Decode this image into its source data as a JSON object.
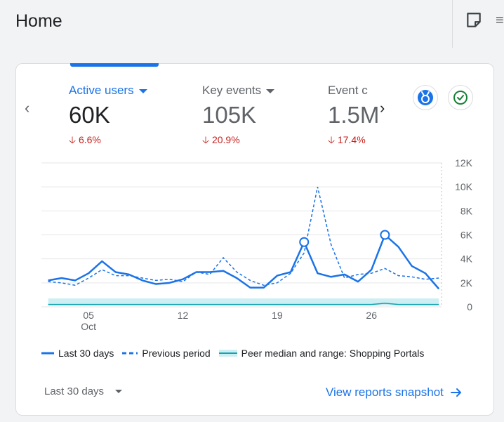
{
  "page": {
    "title": "Home"
  },
  "metrics": [
    {
      "label": "Active users",
      "value": "60K",
      "delta": "6.6%"
    },
    {
      "label": "Key events",
      "value": "105K",
      "delta": "20.9%"
    },
    {
      "label": "Event c",
      "value": "1.5M",
      "delta": "17.4%"
    }
  ],
  "icons": {
    "notes": "sticky-note-icon",
    "prev": "chevron-left-icon",
    "next": "chevron-right-icon",
    "insights": "insights-badge-icon",
    "status": "check-circle-icon",
    "arrow": "arrow-right-icon",
    "down": "arrow-down-icon"
  },
  "colors": {
    "accent": "#1a73e8",
    "negative": "#c5221f",
    "peer_band": "#cdeff3",
    "peer_line": "#12a4af",
    "check": "#188038"
  },
  "legend": {
    "current": "Last 30 days",
    "previous": "Previous period",
    "peer": "Peer median and range: Shopping Portals"
  },
  "footer": {
    "range_label": "Last 30 days",
    "link_label": "View reports snapshot"
  },
  "chart_data": {
    "type": "line",
    "x": [
      2,
      3,
      4,
      5,
      6,
      7,
      8,
      9,
      10,
      11,
      12,
      13,
      14,
      15,
      16,
      17,
      18,
      19,
      20,
      21,
      22,
      23,
      24,
      25,
      26,
      27,
      28,
      29,
      30,
      31
    ],
    "x_ticks": [
      {
        "value": 5,
        "label": "05",
        "sublabel": "Oct"
      },
      {
        "value": 12,
        "label": "12",
        "sublabel": ""
      },
      {
        "value": 19,
        "label": "19",
        "sublabel": ""
      },
      {
        "value": 26,
        "label": "26",
        "sublabel": ""
      }
    ],
    "y_ticks": [
      "0",
      "2K",
      "4K",
      "6K",
      "8K",
      "10K",
      "12K"
    ],
    "ylim": [
      0,
      12000
    ],
    "grid": true,
    "series": [
      {
        "name": "Last 30 days",
        "style": "solid",
        "values": [
          2200,
          2400,
          2200,
          2800,
          3800,
          2900,
          2700,
          2200,
          1900,
          2000,
          2300,
          2900,
          2900,
          3000,
          2400,
          1600,
          1600,
          2600,
          2900,
          5400,
          2800,
          2500,
          2700,
          2100,
          3100,
          6000,
          5000,
          3400,
          2800,
          1500
        ],
        "markers": [
          19,
          25
        ]
      },
      {
        "name": "Previous period",
        "style": "dashed",
        "values": [
          2100,
          2000,
          1800,
          2400,
          3100,
          2600,
          2600,
          2400,
          2200,
          2300,
          2100,
          2900,
          2700,
          4100,
          2900,
          2200,
          1800,
          2000,
          2800,
          4500,
          10000,
          5200,
          2400,
          2700,
          2800,
          3200,
          2600,
          2500,
          2300,
          2400
        ]
      },
      {
        "name": "Peer median and range: Shopping Portals",
        "style": "band",
        "median": [
          200,
          200,
          200,
          200,
          200,
          200,
          200,
          200,
          200,
          200,
          200,
          200,
          200,
          200,
          200,
          200,
          200,
          200,
          200,
          200,
          200,
          200,
          200,
          200,
          200,
          300,
          200,
          200,
          200,
          200
        ],
        "low": [
          100,
          100,
          100,
          100,
          100,
          100,
          100,
          100,
          100,
          100,
          100,
          100,
          100,
          100,
          100,
          100,
          100,
          100,
          100,
          100,
          100,
          100,
          100,
          100,
          100,
          100,
          100,
          100,
          100,
          100
        ],
        "high": [
          700,
          700,
          700,
          700,
          700,
          700,
          700,
          700,
          700,
          700,
          700,
          700,
          700,
          700,
          700,
          700,
          700,
          700,
          700,
          700,
          700,
          700,
          700,
          700,
          700,
          700,
          700,
          700,
          700,
          700
        ]
      }
    ]
  }
}
